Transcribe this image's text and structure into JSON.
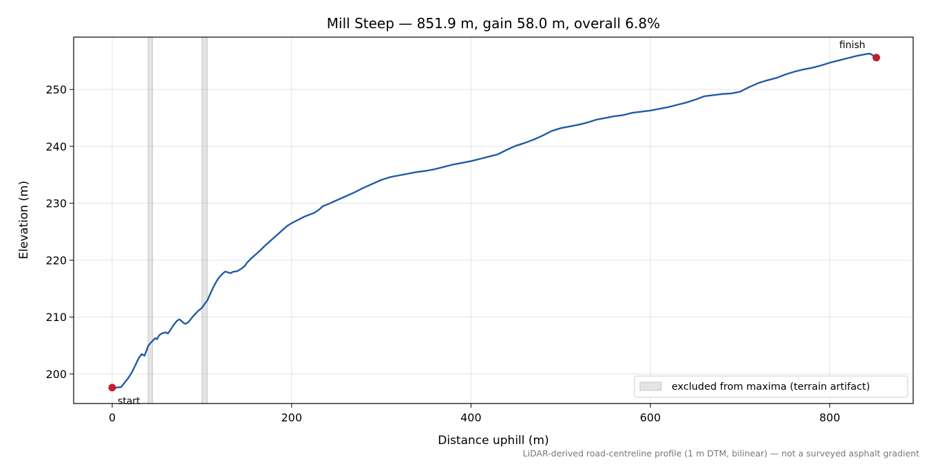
{
  "chart_data": {
    "type": "line",
    "title": "Mill Steep — 851.9 m, gain 58.0 m, overall 6.8%",
    "xlabel": "Distance uphill (m)",
    "ylabel": "Elevation (m)",
    "xlim": [
      -43,
      893
    ],
    "ylim": [
      194.8,
      259.2
    ],
    "xticks": [
      0,
      200,
      400,
      600,
      800
    ],
    "yticks": [
      200,
      210,
      220,
      230,
      240,
      250
    ],
    "grid": true,
    "legend_position": "lower-right",
    "legend": [
      "excluded from maxima (terrain artifact)"
    ],
    "excluded_ranges": [
      [
        40,
        45
      ],
      [
        100,
        106
      ]
    ],
    "line_color": "#1f5aa8",
    "marker_color": "#c0202f",
    "markers": [
      {
        "label": "start",
        "x": 0,
        "y": 197.6
      },
      {
        "label": "finish",
        "x": 851.9,
        "y": 255.6
      }
    ],
    "footnote": "LiDAR-derived road-centreline profile (1 m DTM, bilinear) — not a surveyed asphalt gradient",
    "series": [
      {
        "x": [
          0,
          5,
          10,
          14,
          18,
          22,
          26,
          30,
          33,
          36,
          38,
          40,
          42,
          45,
          48,
          50,
          52,
          54,
          57,
          60,
          62,
          64,
          66,
          68,
          70,
          72,
          75,
          78,
          80,
          82,
          84,
          86,
          88,
          90,
          93,
          96,
          100,
          103,
          106,
          108,
          110,
          112,
          114,
          116,
          118,
          120,
          123,
          126,
          130,
          132,
          134,
          136,
          138,
          140,
          142,
          145,
          148,
          150,
          155,
          160,
          165,
          170,
          175,
          180,
          185,
          190,
          195,
          200,
          205,
          210,
          215,
          220,
          225,
          230,
          235,
          240,
          250,
          260,
          270,
          280,
          290,
          300,
          310,
          320,
          330,
          340,
          350,
          360,
          370,
          380,
          390,
          400,
          410,
          420,
          430,
          440,
          450,
          460,
          470,
          480,
          490,
          500,
          510,
          520,
          530,
          540,
          550,
          560,
          570,
          580,
          590,
          600,
          610,
          620,
          630,
          640,
          650,
          660,
          670,
          680,
          690,
          700,
          710,
          720,
          730,
          740,
          750,
          760,
          770,
          780,
          790,
          800,
          810,
          820,
          830,
          840,
          845,
          848,
          851.9
        ],
        "y": [
          197.6,
          197.6,
          197.7,
          198.5,
          199.3,
          200.3,
          201.6,
          202.9,
          203.5,
          203.2,
          204.0,
          204.9,
          205.3,
          205.8,
          206.3,
          206.1,
          206.7,
          207.0,
          207.2,
          207.3,
          207.1,
          207.5,
          208.0,
          208.5,
          208.9,
          209.3,
          209.6,
          209.2,
          208.9,
          208.8,
          209.0,
          209.3,
          209.7,
          210.1,
          210.6,
          211.1,
          211.6,
          212.3,
          212.9,
          213.6,
          214.3,
          215.0,
          215.6,
          216.2,
          216.7,
          217.1,
          217.6,
          218.0,
          217.8,
          217.7,
          217.9,
          218.0,
          218.0,
          218.1,
          218.3,
          218.6,
          219.0,
          219.5,
          220.3,
          221.0,
          221.7,
          222.5,
          223.2,
          223.9,
          224.6,
          225.3,
          226.0,
          226.5,
          226.9,
          227.3,
          227.7,
          228.0,
          228.3,
          228.8,
          229.5,
          229.8,
          230.5,
          231.2,
          231.9,
          232.7,
          233.4,
          234.1,
          234.6,
          234.9,
          235.2,
          235.5,
          235.7,
          236.0,
          236.4,
          236.8,
          237.1,
          237.4,
          237.8,
          238.2,
          238.6,
          239.4,
          240.1,
          240.6,
          241.2,
          241.9,
          242.7,
          243.2,
          243.5,
          243.8,
          244.2,
          244.7,
          245.0,
          245.3,
          245.5,
          245.9,
          246.1,
          246.3,
          246.6,
          246.9,
          247.3,
          247.7,
          248.2,
          248.8,
          249.0,
          249.2,
          249.3,
          249.6,
          250.4,
          251.1,
          251.6,
          252.0,
          252.6,
          253.1,
          253.5,
          253.8,
          254.2,
          254.7,
          255.1,
          255.5,
          255.9,
          256.2,
          256.3,
          256.0,
          255.6
        ]
      }
    ]
  }
}
